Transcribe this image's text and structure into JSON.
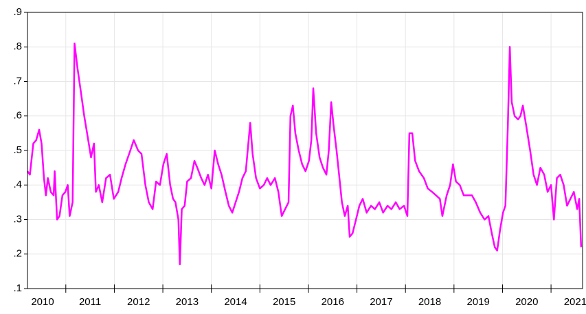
{
  "chart_data": {
    "type": "line",
    "x": [
      2010.21,
      2010.26,
      2010.33,
      2010.39,
      2010.45,
      2010.5,
      2010.55,
      2010.59,
      2010.63,
      2010.69,
      2010.75,
      2010.77,
      2010.82,
      2010.87,
      2010.93,
      2010.99,
      2011.04,
      2011.08,
      2011.14,
      2011.18,
      2011.24,
      2011.31,
      2011.38,
      2011.45,
      2011.52,
      2011.58,
      2011.62,
      2011.68,
      2011.75,
      2011.83,
      2011.91,
      2011.99,
      2012.08,
      2012.15,
      2012.23,
      2012.33,
      2012.4,
      2012.49,
      2012.56,
      2012.64,
      2012.71,
      2012.79,
      2012.86,
      2012.94,
      2013.01,
      2013.08,
      2013.15,
      2013.21,
      2013.26,
      2013.32,
      2013.35,
      2013.39,
      2013.45,
      2013.5,
      2013.58,
      2013.65,
      2013.71,
      2013.79,
      2013.86,
      2013.93,
      2014.0,
      2014.07,
      2014.14,
      2014.21,
      2014.29,
      2014.36,
      2014.43,
      2014.5,
      2014.57,
      2014.64,
      2014.71,
      2014.8,
      2014.85,
      2014.92,
      2015.0,
      2015.08,
      2015.15,
      2015.22,
      2015.31,
      2015.38,
      2015.45,
      2015.52,
      2015.59,
      2015.63,
      2015.68,
      2015.73,
      2015.8,
      2015.87,
      2015.94,
      2016.01,
      2016.06,
      2016.1,
      2016.16,
      2016.23,
      2016.3,
      2016.37,
      2016.42,
      2016.47,
      2016.52,
      2016.58,
      2016.64,
      2016.69,
      2016.75,
      2016.81,
      2016.85,
      2016.91,
      2016.98,
      2017.05,
      2017.12,
      2017.2,
      2017.29,
      2017.37,
      2017.46,
      2017.54,
      2017.63,
      2017.71,
      2017.8,
      2017.88,
      2017.97,
      2018.04,
      2018.08,
      2018.14,
      2018.2,
      2018.28,
      2018.38,
      2018.46,
      2018.55,
      2018.63,
      2018.71,
      2018.76,
      2018.85,
      2018.92,
      2018.98,
      2019.04,
      2019.12,
      2019.2,
      2019.29,
      2019.37,
      2019.45,
      2019.54,
      2019.63,
      2019.71,
      2019.78,
      2019.84,
      2019.89,
      2019.95,
      2020.01,
      2020.06,
      2020.11,
      2020.15,
      2020.19,
      2020.25,
      2020.32,
      2020.37,
      2020.42,
      2020.49,
      2020.57,
      2020.64,
      2020.71,
      2020.78,
      2020.86,
      2020.93,
      2021.0,
      2021.06,
      2021.12,
      2021.19,
      2021.26,
      2021.33,
      2021.4,
      2021.47,
      2021.54,
      2021.58,
      2021.62
    ],
    "values": [
      0.44,
      0.43,
      0.52,
      0.53,
      0.56,
      0.52,
      0.42,
      0.37,
      0.42,
      0.38,
      0.37,
      0.44,
      0.3,
      0.31,
      0.37,
      0.38,
      0.4,
      0.31,
      0.35,
      0.81,
      0.74,
      0.67,
      0.6,
      0.54,
      0.48,
      0.52,
      0.38,
      0.4,
      0.35,
      0.42,
      0.43,
      0.36,
      0.38,
      0.42,
      0.46,
      0.5,
      0.53,
      0.5,
      0.49,
      0.4,
      0.35,
      0.33,
      0.41,
      0.4,
      0.46,
      0.49,
      0.4,
      0.36,
      0.35,
      0.3,
      0.17,
      0.33,
      0.34,
      0.41,
      0.42,
      0.47,
      0.45,
      0.42,
      0.4,
      0.43,
      0.39,
      0.5,
      0.46,
      0.43,
      0.38,
      0.34,
      0.32,
      0.35,
      0.38,
      0.42,
      0.44,
      0.58,
      0.49,
      0.42,
      0.39,
      0.4,
      0.42,
      0.4,
      0.42,
      0.38,
      0.31,
      0.33,
      0.35,
      0.6,
      0.63,
      0.55,
      0.5,
      0.46,
      0.44,
      0.47,
      0.53,
      0.68,
      0.55,
      0.48,
      0.45,
      0.43,
      0.5,
      0.64,
      0.57,
      0.5,
      0.42,
      0.35,
      0.31,
      0.34,
      0.25,
      0.26,
      0.3,
      0.34,
      0.36,
      0.32,
      0.34,
      0.33,
      0.35,
      0.32,
      0.34,
      0.33,
      0.35,
      0.33,
      0.34,
      0.31,
      0.55,
      0.55,
      0.47,
      0.44,
      0.42,
      0.39,
      0.38,
      0.37,
      0.36,
      0.31,
      0.37,
      0.4,
      0.46,
      0.41,
      0.4,
      0.37,
      0.37,
      0.37,
      0.35,
      0.32,
      0.3,
      0.31,
      0.26,
      0.22,
      0.21,
      0.27,
      0.32,
      0.34,
      0.57,
      0.8,
      0.64,
      0.6,
      0.59,
      0.6,
      0.63,
      0.57,
      0.5,
      0.43,
      0.4,
      0.45,
      0.43,
      0.38,
      0.4,
      0.3,
      0.42,
      0.43,
      0.4,
      0.34,
      0.36,
      0.38,
      0.33,
      0.36,
      0.22
    ],
    "color": "#ff00ff",
    "xlim": [
      2010.21,
      2021.65
    ],
    "xticks": [
      {
        "value": 2010.5,
        "label": "2010"
      },
      {
        "value": 2011.5,
        "label": "2011"
      },
      {
        "value": 2012.5,
        "label": "2012"
      },
      {
        "value": 2013.5,
        "label": "2013"
      },
      {
        "value": 2014.5,
        "label": "2014"
      },
      {
        "value": 2015.5,
        "label": "2015"
      },
      {
        "value": 2016.5,
        "label": "2016"
      },
      {
        "value": 2017.5,
        "label": "2017"
      },
      {
        "value": 2018.5,
        "label": "2018"
      },
      {
        "value": 2019.5,
        "label": "2019"
      },
      {
        "value": 2020.5,
        "label": "2020"
      },
      {
        "value": 2021.5,
        "label": "2021"
      }
    ],
    "ylim": [
      0.1,
      0.9
    ],
    "yticks": [
      {
        "value": 0.1,
        "label": ".1"
      },
      {
        "value": 0.2,
        "label": ".2"
      },
      {
        "value": 0.3,
        "label": ".3"
      },
      {
        "value": 0.4,
        "label": ".4"
      },
      {
        "value": 0.5,
        "label": ".5"
      },
      {
        "value": 0.6,
        "label": ".6"
      },
      {
        "value": 0.7,
        "label": ".7"
      },
      {
        "value": 0.8,
        "label": ".8"
      },
      {
        "value": 0.9,
        "label": ".9"
      }
    ],
    "grid": true
  }
}
